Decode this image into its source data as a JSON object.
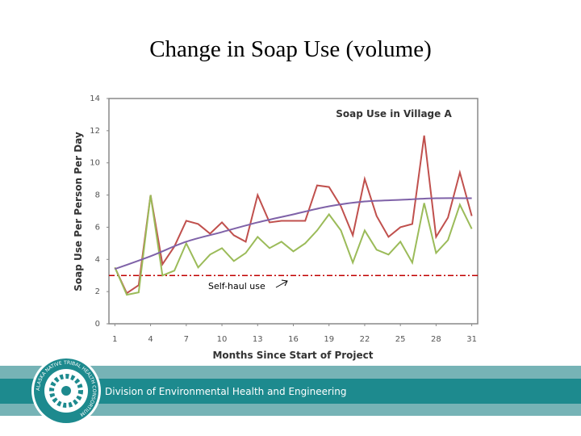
{
  "slide_title": "Change in Soap Use (volume)",
  "footer": {
    "division": "Division of Environmental Health and Engineering",
    "logo_text": "ALASKA NATIVE TRIBAL HEALTH CONSORTIUM"
  },
  "chart_data": {
    "type": "line",
    "title": "Soap Use in Village A",
    "x_label": "Months Since Start of Project",
    "y_label": "Soap Use Per Person Per Day",
    "x": [
      1,
      2,
      3,
      4,
      5,
      6,
      7,
      8,
      9,
      10,
      11,
      12,
      13,
      14,
      15,
      16,
      17,
      18,
      19,
      20,
      21,
      22,
      23,
      24,
      25,
      26,
      27,
      28,
      29,
      30,
      31
    ],
    "series": [
      {
        "color": "#c0504d",
        "values": [
          3.5,
          1.9,
          2.4,
          8.0,
          3.7,
          4.8,
          6.4,
          6.2,
          5.6,
          6.3,
          5.5,
          5.1,
          8.0,
          6.3,
          6.4,
          6.4,
          6.4,
          8.6,
          8.5,
          7.3,
          5.5,
          9.0,
          6.7,
          5.4,
          6.0,
          6.2,
          11.7,
          5.4,
          6.6,
          9.4,
          6.7
        ]
      },
      {
        "color": "#9bbb59",
        "values": [
          3.5,
          1.8,
          1.95,
          8.0,
          3.0,
          3.3,
          5.0,
          3.5,
          4.3,
          4.7,
          3.9,
          4.4,
          5.4,
          4.7,
          5.1,
          4.5,
          5.0,
          5.8,
          6.8,
          5.8,
          3.8,
          5.8,
          4.6,
          4.3,
          5.1,
          3.8,
          7.5,
          4.4,
          5.2,
          7.4,
          5.9
        ]
      },
      {
        "color": "#7f62a8",
        "smooth": true,
        "x": [
          1,
          4,
          7,
          10,
          13,
          16,
          19,
          22,
          25,
          28,
          31
        ],
        "values": [
          3.4,
          4.2,
          5.1,
          5.7,
          6.3,
          6.8,
          7.3,
          7.6,
          7.7,
          7.8,
          7.8
        ]
      }
    ],
    "reference_line": {
      "value": 3,
      "color": "#c00000",
      "label": "Self-haul use"
    },
    "xlim": [
      0.5,
      31.5
    ],
    "xticks": [
      1,
      4,
      7,
      10,
      13,
      16,
      19,
      22,
      25,
      28,
      31
    ],
    "ylim": [
      0,
      14
    ],
    "yticks": [
      0,
      2,
      4,
      6,
      8,
      10,
      12,
      14
    ]
  }
}
